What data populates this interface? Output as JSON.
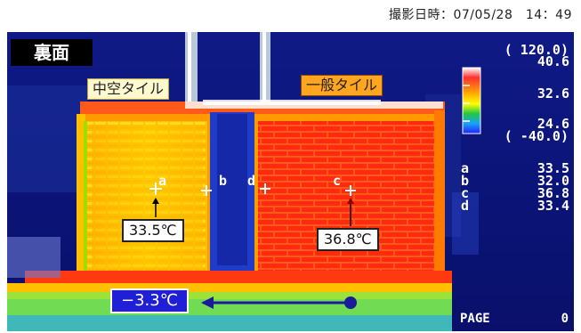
{
  "header": {
    "timestamp": "撮影日時：07/05/28　14：49"
  },
  "labels": {
    "back_side": "裏面",
    "hollow_tile": "中空タイル",
    "normal_tile": "一般タイル"
  },
  "temperature_boxes": {
    "point_a": "33.5℃",
    "point_c": "36.8℃",
    "bottom": "−3.3℃"
  },
  "color_scale": {
    "max_range": "( 120.0)",
    "max": "40.6",
    "mid": "32.6",
    "low": "24.6",
    "min_range": "( -40.0)",
    "colors": [
      "#ffffff",
      "#ff1f1f",
      "#ffb000",
      "#ffff00",
      "#20c840",
      "#1aa0ff",
      "#2020ff",
      "#0a0f6a"
    ]
  },
  "readouts": [
    {
      "name": "a",
      "value": "33.5"
    },
    {
      "name": "b",
      "value": "32.0"
    },
    {
      "name": "c",
      "value": "36.8"
    },
    {
      "name": "d",
      "value": "33.4"
    }
  ],
  "markers": {
    "a": "a",
    "b": "b",
    "c": "c",
    "d": "d"
  },
  "footer": {
    "page_label": "PAGE",
    "page_number": "0"
  }
}
